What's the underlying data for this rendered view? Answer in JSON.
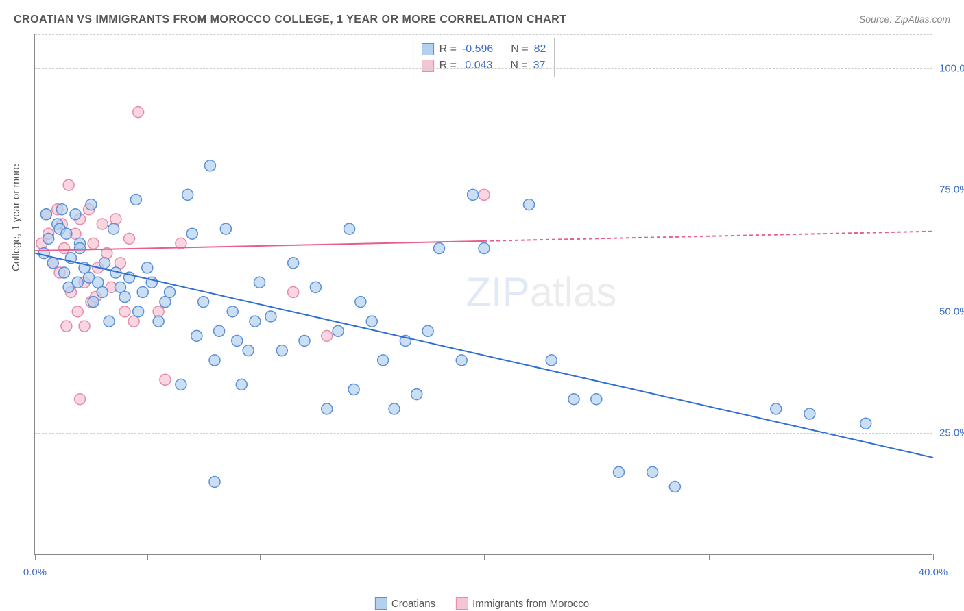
{
  "title": "CROATIAN VS IMMIGRANTS FROM MOROCCO COLLEGE, 1 YEAR OR MORE CORRELATION CHART",
  "source": "Source: ZipAtlas.com",
  "ylabel": "College, 1 year or more",
  "watermark": {
    "z": "Z",
    "ip": "IP",
    "atlas": "atlas"
  },
  "chart": {
    "type": "scatter",
    "xlim": [
      0,
      40
    ],
    "ylim": [
      0,
      107
    ],
    "xtick_positions": [
      0,
      5,
      10,
      15,
      20,
      25,
      30,
      35,
      40
    ],
    "xtick_labels": {
      "0": "0.0%",
      "40": "40.0%"
    },
    "ytick_positions": [
      25,
      50,
      75,
      100
    ],
    "ytick_labels": {
      "25": "25.0%",
      "50": "50.0%",
      "75": "75.0%",
      "100": "100.0%"
    },
    "grid_h_positions": [
      25,
      50,
      75,
      100,
      107
    ],
    "background_color": "#ffffff",
    "grid_color": "#cccccc",
    "border_color": "#888888",
    "marker_radius": 8,
    "marker_stroke_width": 1.5,
    "line_width": 2
  },
  "series": {
    "croatians": {
      "label": "Croatians",
      "fill_color": "#b4d0f0",
      "stroke_color": "#5b8fd6",
      "line_color": "#2e6fd0",
      "R_label": "R =",
      "R_value": "-0.596",
      "N_label": "N =",
      "N_value": "82",
      "trend": {
        "x1": 0,
        "y1": 62,
        "x2": 40,
        "y2": 20,
        "dashed_from_x": 40
      },
      "points": [
        [
          0.4,
          62
        ],
        [
          0.5,
          70
        ],
        [
          0.6,
          65
        ],
        [
          0.8,
          60
        ],
        [
          1.0,
          68
        ],
        [
          1.1,
          67
        ],
        [
          1.2,
          71
        ],
        [
          1.3,
          58
        ],
        [
          1.4,
          66
        ],
        [
          1.5,
          55
        ],
        [
          1.6,
          61
        ],
        [
          1.8,
          70
        ],
        [
          1.9,
          56
        ],
        [
          2.0,
          64
        ],
        [
          2.2,
          59
        ],
        [
          2.4,
          57
        ],
        [
          2.5,
          72
        ],
        [
          2.6,
          52
        ],
        [
          2.8,
          56
        ],
        [
          3.0,
          54
        ],
        [
          3.1,
          60
        ],
        [
          3.3,
          48
        ],
        [
          3.5,
          67
        ],
        [
          3.6,
          58
        ],
        [
          3.8,
          55
        ],
        [
          4.0,
          53
        ],
        [
          4.2,
          57
        ],
        [
          4.5,
          73
        ],
        [
          4.6,
          50
        ],
        [
          4.8,
          54
        ],
        [
          5.0,
          59
        ],
        [
          5.2,
          56
        ],
        [
          5.5,
          48
        ],
        [
          5.8,
          52
        ],
        [
          6.0,
          54
        ],
        [
          6.5,
          35
        ],
        [
          6.8,
          74
        ],
        [
          7.0,
          66
        ],
        [
          7.2,
          45
        ],
        [
          7.5,
          52
        ],
        [
          7.8,
          80
        ],
        [
          8.0,
          40
        ],
        [
          8.2,
          46
        ],
        [
          8.5,
          67
        ],
        [
          8.8,
          50
        ],
        [
          9.0,
          44
        ],
        [
          9.2,
          35
        ],
        [
          9.5,
          42
        ],
        [
          9.8,
          48
        ],
        [
          10.0,
          56
        ],
        [
          10.5,
          49
        ],
        [
          11.0,
          42
        ],
        [
          11.5,
          60
        ],
        [
          12.0,
          44
        ],
        [
          12.5,
          55
        ],
        [
          13.0,
          30
        ],
        [
          13.5,
          46
        ],
        [
          14.0,
          67
        ],
        [
          14.2,
          34
        ],
        [
          14.5,
          52
        ],
        [
          15.0,
          48
        ],
        [
          15.5,
          40
        ],
        [
          16.0,
          30
        ],
        [
          16.5,
          44
        ],
        [
          17.0,
          33
        ],
        [
          17.5,
          46
        ],
        [
          18.0,
          63
        ],
        [
          19.0,
          40
        ],
        [
          19.5,
          74
        ],
        [
          20.0,
          63
        ],
        [
          22.0,
          72
        ],
        [
          23.0,
          40
        ],
        [
          24.0,
          32
        ],
        [
          25.0,
          32
        ],
        [
          26.0,
          17
        ],
        [
          27.5,
          17
        ],
        [
          28.5,
          14
        ],
        [
          33.0,
          30
        ],
        [
          34.5,
          29
        ],
        [
          37.0,
          27
        ],
        [
          8.0,
          15
        ],
        [
          2.0,
          63
        ]
      ]
    },
    "morocco": {
      "label": "Immigrants from Morocco",
      "fill_color": "#f6c5d3",
      "stroke_color": "#e88aa8",
      "line_color": "#e85d8a",
      "R_label": "R =",
      "R_value": "0.043",
      "N_label": "N =",
      "N_value": "37",
      "trend": {
        "x1": 0,
        "y1": 62.5,
        "x2": 20,
        "y2": 64.5,
        "dashed_to_x": 40,
        "dashed_to_y": 66.5
      },
      "points": [
        [
          0.3,
          64
        ],
        [
          0.5,
          70
        ],
        [
          0.6,
          66
        ],
        [
          0.8,
          60
        ],
        [
          1.0,
          71
        ],
        [
          1.1,
          58
        ],
        [
          1.2,
          68
        ],
        [
          1.3,
          63
        ],
        [
          1.5,
          76
        ],
        [
          1.6,
          54
        ],
        [
          1.8,
          66
        ],
        [
          1.9,
          50
        ],
        [
          2.0,
          69
        ],
        [
          2.2,
          56
        ],
        [
          2.4,
          71
        ],
        [
          2.5,
          52
        ],
        [
          2.6,
          64
        ],
        [
          2.8,
          59
        ],
        [
          3.0,
          68
        ],
        [
          3.2,
          62
        ],
        [
          3.4,
          55
        ],
        [
          3.6,
          69
        ],
        [
          3.8,
          60
        ],
        [
          4.0,
          50
        ],
        [
          4.2,
          65
        ],
        [
          4.4,
          48
        ],
        [
          1.4,
          47
        ],
        [
          2.0,
          32
        ],
        [
          2.2,
          47
        ],
        [
          4.6,
          91
        ],
        [
          5.5,
          50
        ],
        [
          5.8,
          36
        ],
        [
          6.5,
          64
        ],
        [
          11.5,
          54
        ],
        [
          13.0,
          45
        ],
        [
          20.0,
          74
        ],
        [
          2.7,
          53
        ]
      ]
    }
  }
}
